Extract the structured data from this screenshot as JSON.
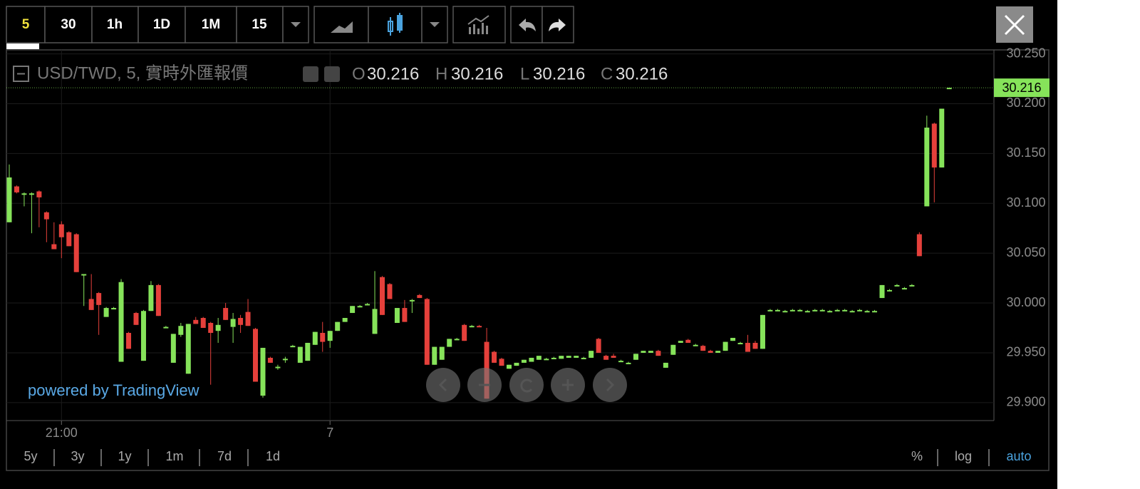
{
  "toolbar": {
    "intervals": [
      "5",
      "30",
      "1h",
      "1D",
      "1M",
      "15"
    ]
  },
  "chart_data": {
    "type": "candlestick",
    "title": "USD/TWD, 5, 實時外匯報價",
    "legend_labels": [
      "O",
      "H",
      "L",
      "C"
    ],
    "watermark": "powered by TradingView",
    "up_color": "#86e35a",
    "down_color": "#e5403b",
    "ylim": [
      29.882,
      30.254
    ],
    "yticks": [
      {
        "value": 29.9,
        "label": "29.900"
      },
      {
        "value": 29.95,
        "label": "29.950"
      },
      {
        "value": 30.0,
        "label": "30.000"
      },
      {
        "value": 30.05,
        "label": "30.050"
      },
      {
        "value": 30.1,
        "label": "30.100"
      },
      {
        "value": 30.15,
        "label": "30.150"
      },
      {
        "value": 30.2,
        "label": "30.200"
      },
      {
        "value": 30.25,
        "label": "30.250"
      }
    ],
    "categories": [
      null,
      null,
      null,
      null,
      null,
      null,
      null,
      "21:00",
      null,
      null,
      null,
      null,
      null,
      null,
      null,
      null,
      null,
      null,
      null,
      null,
      null,
      null,
      null,
      null,
      null,
      null,
      null,
      null,
      null,
      null,
      null,
      null,
      null,
      null,
      null,
      null,
      null,
      null,
      null,
      null,
      null,
      null,
      null,
      "7",
      null,
      null,
      null,
      null,
      null,
      null,
      null,
      null,
      null,
      null,
      null,
      null,
      null,
      null,
      null,
      null,
      null,
      null,
      null,
      null,
      null,
      null,
      null,
      null,
      null,
      null,
      null,
      null,
      null,
      null,
      null,
      null,
      null,
      null,
      null,
      null,
      null,
      null,
      null,
      null,
      null,
      null,
      null,
      null,
      null,
      null,
      null,
      null,
      null,
      null,
      null,
      null,
      null,
      null,
      null,
      null,
      null,
      null,
      null,
      null,
      null,
      null,
      null,
      null,
      null,
      null,
      null,
      null,
      null,
      null,
      null,
      null,
      null,
      null,
      null,
      null,
      null,
      null,
      null,
      null,
      null,
      null,
      null
    ],
    "open": [
      30.081,
      30.117,
      30.11,
      30.11,
      30.112,
      30.091,
      30.059,
      30.079,
      30.071,
      30.069,
      30.029,
      30.004,
      30.01,
      29.986,
      29.995,
      29.941,
      29.97,
      29.99,
      29.942,
      29.992,
      30.018,
      29.976,
      29.94,
      29.968,
      29.929,
      29.983,
      29.985,
      29.98,
      29.972,
      29.995,
      29.976,
      29.985,
      29.991,
      29.974,
      29.907,
      29.945,
      29.935,
      29.944,
      29.957,
      29.94,
      29.942,
      29.958,
      29.97,
      29.962,
      29.972,
      29.981,
      29.99,
      29.997,
      29.999,
      29.969,
      30.026,
      30.019,
      29.98,
      29.995,
      30.003,
      30.008,
      30.004,
      29.938,
      29.943,
      29.956,
      29.964,
      29.978,
      29.977,
      29.977,
      29.961,
      29.951,
      29.944,
      29.934,
      29.937,
      29.94,
      29.941,
      29.943,
      29.944,
      29.945,
      29.944,
      29.945,
      29.945,
      29.945,
      29.945,
      29.964,
      29.947,
      29.947,
      29.942,
      29.94,
      29.943,
      29.95,
      29.95,
      29.952,
      29.935,
      29.948,
      29.96,
      29.963,
      29.958,
      29.957,
      29.952,
      29.95,
      29.952,
      29.962,
      29.96,
      29.96,
      29.96,
      29.954,
      29.993,
      29.993,
      29.992,
      29.993,
      29.993,
      29.992,
      29.993,
      29.993,
      29.992,
      29.993,
      29.993,
      29.992,
      29.993,
      29.992,
      29.992,
      30.005,
      30.013,
      30.018,
      30.015,
      30.018,
      30.069,
      30.097,
      30.18,
      30.136,
      30.216
    ],
    "high": [
      30.139,
      30.118,
      30.111,
      30.111,
      30.113,
      30.092,
      30.081,
      30.082,
      30.072,
      30.07,
      30.029,
      30.029,
      30.011,
      29.996,
      29.996,
      30.024,
      29.971,
      29.991,
      29.993,
      30.022,
      30.019,
      29.977,
      29.969,
      29.98,
      29.979,
      29.986,
      29.986,
      29.981,
      29.985,
      30.0,
      29.99,
      29.988,
      30.004,
      29.975,
      29.955,
      29.946,
      29.938,
      29.946,
      29.958,
      29.956,
      29.96,
      29.971,
      29.981,
      29.972,
      29.981,
      29.985,
      29.997,
      29.998,
      30.0,
      30.032,
      30.027,
      30.02,
      29.995,
      30.003,
      30.004,
      30.009,
      30.005,
      29.956,
      29.956,
      29.964,
      29.965,
      29.979,
      29.978,
      29.978,
      29.975,
      29.952,
      29.945,
      29.938,
      29.94,
      29.943,
      29.945,
      29.947,
      29.945,
      29.946,
      29.947,
      29.947,
      29.947,
      29.946,
      29.952,
      29.965,
      29.948,
      29.949,
      29.943,
      29.941,
      29.949,
      29.952,
      29.952,
      29.953,
      29.94,
      29.958,
      29.962,
      29.964,
      29.959,
      29.958,
      29.953,
      29.952,
      29.961,
      29.965,
      29.961,
      29.968,
      29.962,
      29.988,
      29.994,
      29.994,
      29.993,
      29.994,
      29.994,
      29.993,
      29.994,
      29.994,
      29.993,
      29.994,
      29.994,
      29.993,
      29.994,
      29.993,
      29.993,
      30.018,
      30.014,
      30.019,
      30.016,
      30.019,
      30.071,
      30.188,
      30.181,
      30.195,
      30.216
    ],
    "low": [
      30.081,
      30.11,
      30.097,
      30.07,
      30.076,
      30.061,
      30.054,
      30.045,
      30.057,
      30.031,
      29.997,
      29.993,
      29.968,
      29.986,
      29.994,
      29.941,
      29.954,
      29.978,
      29.942,
      29.992,
      29.987,
      29.975,
      29.94,
      29.966,
      29.929,
      29.979,
      29.975,
      29.918,
      29.96,
      29.983,
      29.96,
      29.97,
      29.977,
      29.921,
      29.905,
      29.94,
      29.933,
      29.94,
      29.956,
      29.94,
      29.942,
      29.958,
      29.951,
      29.955,
      29.972,
      29.981,
      29.99,
      29.996,
      29.998,
      29.969,
      29.988,
      30.004,
      29.98,
      29.981,
      29.99,
      30.005,
      29.938,
      29.938,
      29.943,
      29.956,
      29.963,
      29.962,
      29.976,
      29.976,
      29.904,
      29.94,
      29.937,
      29.934,
      29.937,
      29.94,
      29.941,
      29.943,
      29.943,
      29.944,
      29.944,
      29.945,
      29.945,
      29.944,
      29.945,
      29.95,
      29.943,
      29.945,
      29.941,
      29.939,
      29.943,
      29.95,
      29.95,
      29.947,
      29.935,
      29.948,
      29.96,
      29.96,
      29.957,
      29.952,
      29.95,
      29.95,
      29.952,
      29.962,
      29.959,
      29.951,
      29.954,
      29.954,
      29.992,
      29.992,
      29.991,
      29.992,
      29.992,
      29.991,
      29.992,
      29.992,
      29.991,
      29.992,
      29.992,
      29.991,
      29.992,
      29.991,
      29.991,
      30.005,
      30.012,
      30.017,
      30.014,
      30.017,
      30.047,
      30.097,
      30.101,
      30.136,
      30.216
    ],
    "close": [
      30.126,
      30.111,
      30.11,
      30.11,
      30.106,
      30.084,
      30.054,
      30.066,
      30.057,
      30.031,
      30.029,
      29.993,
      29.998,
      29.995,
      29.995,
      30.021,
      29.954,
      29.978,
      29.992,
      30.018,
      29.987,
      29.976,
      29.969,
      29.977,
      29.979,
      29.979,
      29.975,
      29.97,
      29.978,
      29.983,
      29.984,
      29.978,
      29.977,
      29.921,
      29.955,
      29.94,
      29.936,
      29.944,
      29.957,
      29.956,
      29.96,
      29.971,
      29.961,
      29.972,
      29.981,
      29.985,
      29.997,
      29.997,
      29.999,
      29.994,
      29.988,
      30.004,
      29.995,
      29.981,
      30.003,
      30.005,
      29.938,
      29.956,
      29.956,
      29.964,
      29.964,
      29.962,
      29.977,
      29.976,
      29.904,
      29.94,
      29.937,
      29.938,
      29.94,
      29.943,
      29.945,
      29.947,
      29.944,
      29.945,
      29.947,
      29.947,
      29.947,
      29.945,
      29.952,
      29.95,
      29.943,
      29.945,
      29.942,
      29.94,
      29.949,
      29.952,
      29.952,
      29.947,
      29.94,
      29.958,
      29.962,
      29.96,
      29.958,
      29.952,
      29.95,
      29.952,
      29.961,
      29.965,
      29.96,
      29.951,
      29.954,
      29.988,
      29.993,
      29.993,
      29.992,
      29.993,
      29.993,
      29.992,
      29.993,
      29.993,
      29.992,
      29.993,
      29.993,
      29.992,
      29.993,
      29.992,
      29.992,
      30.018,
      30.013,
      30.018,
      30.015,
      30.018,
      30.047,
      30.176,
      30.136,
      30.195,
      30.216
    ]
  },
  "footer": {
    "ranges": [
      "5y",
      "3y",
      "1y",
      "1m",
      "7d",
      "1d"
    ],
    "scale_options": [
      "%",
      "log",
      "auto"
    ]
  }
}
